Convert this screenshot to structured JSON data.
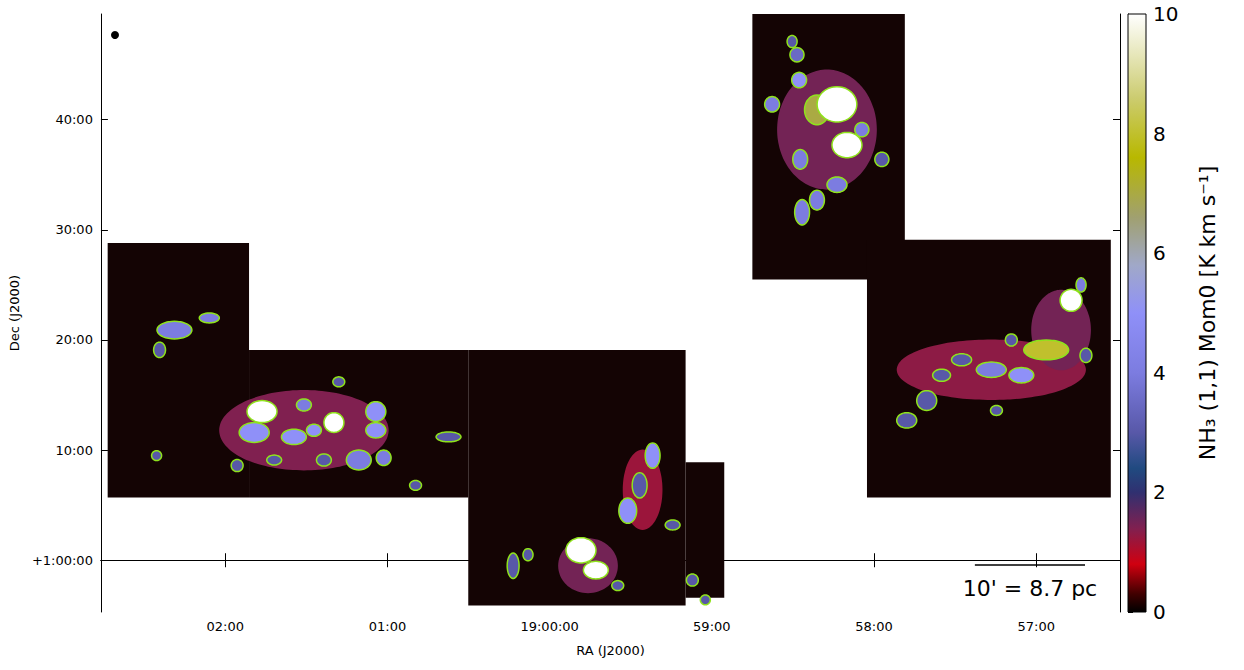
{
  "chart_data": {
    "type": "heatmap",
    "xlabel": "RA (J2000)",
    "ylabel": "Dec (J2000)",
    "xlim": [
      3766,
      3389
    ],
    "ylim": [
      -4.7,
      49.6
    ],
    "xticks": [
      {
        "value": 3720,
        "label": "02:00"
      },
      {
        "value": 3660,
        "label": "01:00"
      },
      {
        "value": 3600,
        "label": "19:00:00"
      },
      {
        "value": 3540,
        "label": "59:00"
      },
      {
        "value": 3480,
        "label": "58:00"
      },
      {
        "value": 3420,
        "label": "57:00"
      }
    ],
    "yticks": [
      {
        "value": 0,
        "label": "+1:00:00"
      },
      {
        "value": 10,
        "label": "10:00"
      },
      {
        "value": 20,
        "label": "20:00"
      },
      {
        "value": 30,
        "label": "30:00"
      },
      {
        "value": 40,
        "label": "40:00"
      }
    ],
    "grid": false,
    "coverage": [
      [
        3763.5,
        3711.2,
        5.7,
        28.8
      ],
      [
        3711.2,
        3630.1,
        5.7,
        19.1
      ],
      [
        3630.1,
        3549.7,
        -4.1,
        19.1
      ],
      [
        3549.7,
        3535.4,
        -3.4,
        8.9
      ],
      [
        3525.0,
        3468.6,
        25.5,
        49.6
      ],
      [
        3482.6,
        3392.4,
        5.7,
        29.1
      ]
    ],
    "diffuse": {
      "ra": [
        3497.4,
        3436.6,
        3410.8,
        3690.9,
        3585.8,
        3565.6
      ],
      "dec": [
        39.1,
        17.3,
        20.9,
        11.8,
        -0.5,
        6.4
      ],
      "dra": [
        36.9,
        70.0,
        22.1,
        62.7,
        22.1,
        14.7
      ],
      "ddec": [
        10.9,
        5.5,
        7.3,
        7.3,
        5.0,
        7.3
      ],
      "values": [
        1.5,
        1.3,
        1.5,
        1.4,
        1.5,
        1.2
      ]
    },
    "clumps": {
      "ra": [
        3517.7,
        3508.5,
        3510.3,
        3507.7,
        3484.5,
        3477.1,
        3507.3,
        3493.7,
        3501.1,
        3506.6,
        3501.1,
        3490.0,
        3493.7,
        3403.4,
        3401.6,
        3429.2,
        3434.7,
        3447.6,
        3455.0,
        3460.5,
        3467.9,
        3436.6,
        3425.5,
        3416.3,
        3407.1,
        3744.3,
        3738.8,
        3725.9,
        3678.0,
        3690.9,
        3687.2,
        3709.3,
        3694.6,
        3664.3,
        3664.3,
        3670.6,
        3661.4,
        3715.6,
        3701.9,
        3683.5,
        3745.4,
        3649.6,
        3637.4,
        3706.4,
        3679.8,
        3561.9,
        3566.7,
        3571.1,
        3554.5,
        3547.2,
        3613.5,
        3608.0,
        3542.4,
        3574.8,
        3588.4,
        3582.9
      ],
      "dec": [
        41.4,
        45.9,
        47.1,
        43.6,
        39.1,
        36.4,
        36.4,
        34.1,
        32.7,
        31.6,
        40.9,
        37.7,
        41.4,
        25.0,
        18.6,
        20.0,
        13.6,
        18.2,
        16.8,
        14.5,
        12.7,
        17.3,
        16.8,
        19.1,
        23.6,
        19.1,
        20.9,
        22.0,
        16.2,
        14.1,
        11.8,
        11.6,
        11.2,
        13.5,
        11.8,
        9.1,
        9.3,
        8.6,
        9.1,
        9.1,
        9.5,
        6.8,
        11.2,
        13.5,
        12.5,
        9.5,
        6.8,
        4.5,
        3.2,
        -1.8,
        -0.5,
        0.5,
        -3.6,
        -2.3,
        0.9,
        -0.9
      ],
      "dra": [
        5.5,
        5.2,
        3.7,
        5.5,
        5.2,
        5.2,
        5.5,
        7.4,
        5.5,
        5.5,
        9.2,
        11.1,
        14.7,
        3.7,
        4.4,
        4.4,
        4.4,
        7.4,
        6.6,
        7.4,
        7.4,
        11.1,
        9.2,
        16.6,
        8.1,
        4.4,
        12.9,
        7.4,
        4.4,
        5.5,
        5.5,
        11.1,
        9.2,
        7.4,
        7.4,
        9.2,
        5.5,
        4.4,
        5.5,
        5.5,
        3.7,
        4.4,
        9.2,
        11.1,
        7.4,
        5.5,
        5.5,
        6.6,
        5.5,
        4.4,
        4.4,
        3.7,
        3.7,
        4.4,
        11.1,
        9.2
      ],
      "ddec": [
        1.4,
        1.3,
        1.1,
        1.4,
        1.3,
        1.3,
        1.8,
        1.4,
        1.8,
        2.3,
        2.7,
        2.3,
        3.2,
        1.3,
        1.3,
        1.1,
        0.9,
        1.1,
        1.1,
        1.8,
        1.4,
        1.4,
        1.4,
        1.8,
        2.0,
        1.4,
        1.6,
        0.9,
        0.9,
        1.1,
        1.1,
        1.8,
        1.4,
        1.8,
        1.4,
        1.8,
        1.4,
        1.1,
        0.9,
        1.1,
        0.9,
        0.9,
        0.9,
        2.0,
        1.8,
        2.3,
        2.3,
        2.3,
        0.9,
        1.1,
        2.3,
        1.1,
        0.9,
        0.9,
        2.3,
        1.6
      ],
      "values": [
        4,
        3.5,
        3,
        5,
        4,
        3,
        4,
        4,
        4,
        4,
        7,
        10,
        10,
        4,
        3,
        3,
        3,
        3,
        3,
        3,
        3,
        4,
        5,
        8,
        10,
        3,
        4,
        4,
        3,
        4,
        5,
        5,
        5,
        5,
        5,
        4,
        4,
        3,
        3,
        3,
        3,
        3,
        3,
        10,
        10,
        5,
        3,
        5,
        3,
        3,
        3,
        3,
        3,
        3,
        10,
        10
      ]
    },
    "colorbar": {
      "label": "NH₃ (1,1) Mom0 [K km s⁻¹]",
      "range": [
        0,
        10
      ],
      "ticks": [
        0,
        2,
        4,
        6,
        8,
        10
      ]
    },
    "scale_bar": {
      "label": "10' = 8.7 pc",
      "length": 10
    }
  }
}
